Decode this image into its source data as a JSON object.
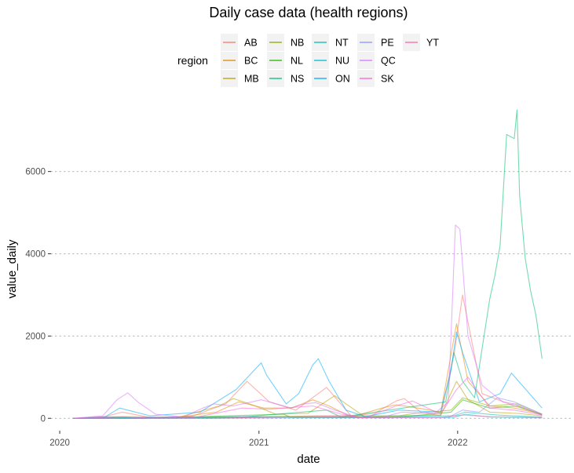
{
  "chart_data": {
    "type": "line",
    "title": "Daily case data (health regions)",
    "xlabel": "date",
    "ylabel": "value_daily",
    "x_ticks": [
      "2020",
      "2021",
      "2022"
    ],
    "y_ticks": [
      0,
      2000,
      4000,
      6000
    ],
    "ylim": [
      -300,
      7500
    ],
    "xlim": [
      "2019-12-16",
      "2022-07-28"
    ],
    "grid": "horizontal dotted",
    "legend": {
      "title": "region",
      "placement": "top",
      "entries": [
        "AB",
        "BC",
        "MB",
        "NB",
        "NL",
        "NS",
        "NT",
        "NU",
        "ON",
        "PE",
        "QC",
        "SK",
        "YT"
      ]
    },
    "colors": {
      "AB": "#F8766D",
      "BC": "#E18A00",
      "MB": "#BE9C00",
      "NB": "#8CAB00",
      "NL": "#24B700",
      "NS": "#00BE70",
      "NT": "#00C1AB",
      "NU": "#00BBDA",
      "ON": "#00ACFC",
      "PE": "#8B93FF",
      "QC": "#D575FE",
      "SK": "#F962DD",
      "YT": "#FF65AC"
    },
    "series": [
      {
        "name": "AB",
        "x": [
          "2020-01-25",
          "2020-03-15",
          "2020-04-25",
          "2020-06-15",
          "2020-09-01",
          "2020-11-01",
          "2020-12-10",
          "2021-01-20",
          "2021-03-10",
          "2021-05-05",
          "2021-06-20",
          "2021-08-01",
          "2021-09-10",
          "2021-09-25",
          "2021-10-25",
          "2021-12-01",
          "2021-12-26",
          "2022-01-10",
          "2022-02-15",
          "2022-04-15",
          "2022-06-05"
        ],
        "y": [
          0,
          10,
          150,
          20,
          50,
          350,
          900,
          400,
          200,
          750,
          50,
          120,
          420,
          480,
          150,
          60,
          1600,
          3000,
          600,
          300,
          100
        ]
      },
      {
        "name": "BC",
        "x": [
          "2020-01-25",
          "2020-03-20",
          "2020-05-01",
          "2020-08-01",
          "2020-10-15",
          "2020-11-25",
          "2021-01-10",
          "2021-03-01",
          "2021-04-10",
          "2021-05-10",
          "2021-06-20",
          "2021-08-15",
          "2021-09-10",
          "2021-10-20",
          "2021-12-01",
          "2021-12-30",
          "2022-01-20",
          "2022-03-01",
          "2022-04-15",
          "2022-06-05"
        ],
        "y": [
          0,
          30,
          40,
          20,
          150,
          400,
          250,
          250,
          450,
          300,
          30,
          250,
          330,
          250,
          150,
          2300,
          900,
          300,
          250,
          100
        ]
      },
      {
        "name": "MB",
        "x": [
          "2020-01-25",
          "2020-03-25",
          "2020-08-01",
          "2020-10-20",
          "2020-11-15",
          "2020-12-15",
          "2021-02-01",
          "2021-04-01",
          "2021-05-20",
          "2021-06-10",
          "2021-07-15",
          "2021-09-15",
          "2021-12-01",
          "2021-12-30",
          "2022-01-20",
          "2022-03-01",
          "2022-04-20",
          "2022-06-05"
        ],
        "y": [
          0,
          10,
          5,
          300,
          480,
          350,
          100,
          120,
          550,
          350,
          30,
          60,
          80,
          900,
          450,
          150,
          120,
          60
        ]
      },
      {
        "name": "NB",
        "x": [
          "2020-01-25",
          "2020-06-01",
          "2020-10-01",
          "2021-01-25",
          "2021-04-15",
          "2021-09-15",
          "2021-10-15",
          "2021-12-20",
          "2022-01-10",
          "2022-03-01",
          "2022-04-20",
          "2022-06-05"
        ],
        "y": [
          0,
          0,
          10,
          40,
          60,
          60,
          120,
          200,
          500,
          300,
          350,
          100
        ]
      },
      {
        "name": "NL",
        "x": [
          "2020-01-25",
          "2020-06-01",
          "2021-02-15",
          "2021-03-01",
          "2021-09-01",
          "2021-12-20",
          "2022-01-10",
          "2022-03-01",
          "2022-04-20",
          "2022-06-05"
        ],
        "y": [
          0,
          0,
          100,
          20,
          10,
          150,
          450,
          250,
          300,
          80
        ]
      },
      {
        "name": "NS",
        "x": [
          "2020-01-25",
          "2020-04-10",
          "2020-05-15",
          "2020-12-01",
          "2021-05-05",
          "2021-06-01",
          "2021-12-10",
          "2021-12-25",
          "2022-01-10",
          "2022-02-01",
          "2022-03-01",
          "2022-03-10",
          "2022-03-20",
          "2022-04-01",
          "2022-04-15",
          "2022-04-20",
          "2022-04-25",
          "2022-05-05",
          "2022-05-15",
          "2022-05-25",
          "2022-06-05"
        ],
        "y": [
          0,
          30,
          10,
          30,
          200,
          30,
          400,
          1600,
          900,
          500,
          2900,
          3450,
          4200,
          6900,
          6800,
          7500,
          5400,
          3900,
          3100,
          2500,
          1450
        ]
      },
      {
        "name": "NT",
        "x": [
          "2020-01-25",
          "2021-05-01",
          "2021-08-15",
          "2021-12-25",
          "2022-01-15",
          "2022-03-15",
          "2022-06-05"
        ],
        "y": [
          0,
          30,
          40,
          60,
          150,
          80,
          30
        ]
      },
      {
        "name": "NU",
        "x": [
          "2020-01-25",
          "2020-11-20",
          "2021-05-01",
          "2021-12-25",
          "2022-01-15",
          "2022-03-01",
          "2022-06-05"
        ],
        "y": [
          0,
          40,
          30,
          20,
          100,
          30,
          10
        ]
      },
      {
        "name": "ON",
        "x": [
          "2020-01-25",
          "2020-03-25",
          "2020-04-20",
          "2020-06-15",
          "2020-09-15",
          "2020-11-20",
          "2021-01-05",
          "2021-01-15",
          "2021-02-20",
          "2021-03-15",
          "2021-04-10",
          "2021-04-20",
          "2021-05-10",
          "2021-06-10",
          "2021-07-15",
          "2021-09-15",
          "2021-12-01",
          "2021-12-20",
          "2021-12-30",
          "2022-01-10",
          "2022-02-10",
          "2022-03-20",
          "2022-04-10",
          "2022-06-05"
        ],
        "y": [
          0,
          40,
          250,
          60,
          150,
          700,
          1350,
          1050,
          350,
          600,
          1300,
          1450,
          900,
          200,
          40,
          200,
          150,
          1200,
          2100,
          1600,
          400,
          600,
          1100,
          250
        ]
      },
      {
        "name": "PE",
        "x": [
          "2020-01-25",
          "2020-09-01",
          "2021-12-15",
          "2022-01-10",
          "2022-02-10",
          "2022-03-15",
          "2022-04-15",
          "2022-06-05"
        ],
        "y": [
          0,
          0,
          20,
          200,
          150,
          500,
          400,
          100
        ]
      },
      {
        "name": "QC",
        "x": [
          "2020-01-25",
          "2020-03-20",
          "2020-04-15",
          "2020-05-05",
          "2020-05-25",
          "2020-06-25",
          "2020-08-15",
          "2020-09-20",
          "2020-10-10",
          "2020-11-15",
          "2021-01-05",
          "2021-01-20",
          "2021-03-01",
          "2021-03-25",
          "2021-04-15",
          "2021-05-20",
          "2021-07-01",
          "2021-08-20",
          "2021-09-20",
          "2021-11-20",
          "2021-12-15",
          "2021-12-28",
          "2022-01-05",
          "2022-01-20",
          "2022-02-15",
          "2022-03-25",
          "2022-04-15",
          "2022-06-05"
        ],
        "y": [
          0,
          60,
          450,
          620,
          380,
          100,
          30,
          250,
          350,
          300,
          450,
          400,
          250,
          350,
          380,
          200,
          20,
          40,
          150,
          120,
          400,
          4700,
          4600,
          2000,
          800,
          400,
          350,
          80
        ]
      },
      {
        "name": "SK",
        "x": [
          "2020-01-25",
          "2020-03-25",
          "2020-04-25",
          "2020-06-01",
          "2020-09-01",
          "2020-12-01",
          "2021-01-20",
          "2021-04-10",
          "2021-06-01",
          "2021-07-15",
          "2021-09-10",
          "2021-10-10",
          "2021-12-01",
          "2021-12-30",
          "2022-01-20",
          "2022-03-01",
          "2022-04-15",
          "2022-06-05"
        ],
        "y": [
          0,
          20,
          40,
          10,
          10,
          250,
          220,
          300,
          100,
          10,
          300,
          420,
          100,
          700,
          1000,
          250,
          200,
          80
        ]
      },
      {
        "name": "YT",
        "x": [
          "2020-01-25",
          "2020-10-01",
          "2021-06-15",
          "2021-07-01",
          "2021-12-01",
          "2022-01-10",
          "2022-03-01",
          "2022-06-05"
        ],
        "y": [
          0,
          0,
          60,
          20,
          20,
          80,
          40,
          20
        ]
      }
    ]
  }
}
